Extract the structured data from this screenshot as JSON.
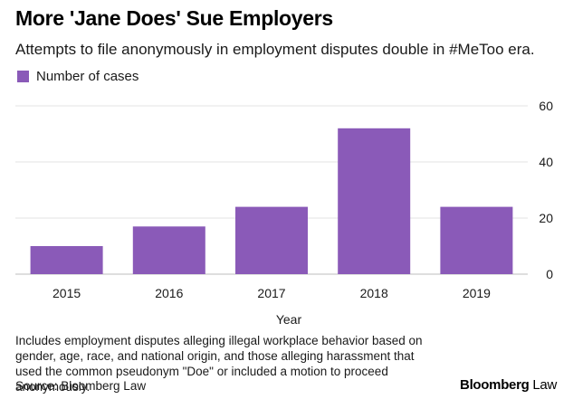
{
  "chart_data": {
    "type": "bar",
    "title": "More 'Jane Does' Sue Employers",
    "subtitle": "Attempts to file anonymously in employment disputes double in #MeToo era.",
    "categories": [
      "2015",
      "2016",
      "2017",
      "2018",
      "2019"
    ],
    "series": [
      {
        "name": "Number of cases",
        "values": [
          10,
          17,
          24,
          52,
          24
        ]
      }
    ],
    "xlabel": "Year",
    "ylabel": "",
    "ylim": [
      0,
      60
    ],
    "yticks": [
      "0",
      "20",
      "40",
      "60"
    ],
    "grid": true,
    "legend_position": "top-left",
    "bar_color": "#8a5ab8",
    "grid_color": "#e3e3e3",
    "note": "Includes employment disputes alleging illegal workplace behavior based on gender, age, race, and national origin, and those alleging harassment that used the common pseudonym \"Doe\" or included a motion to proceed anonymously.",
    "source": "Source: Bloomberg Law",
    "brand": {
      "bold": "Bloomberg",
      "regular": " Law"
    }
  }
}
